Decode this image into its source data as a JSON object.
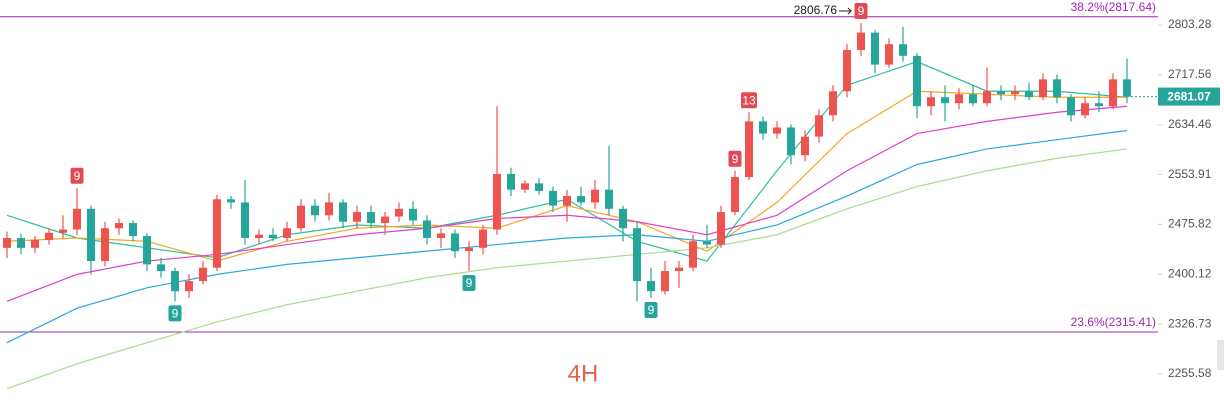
{
  "chart_data": {
    "type": "candlestick",
    "watermark": "4H",
    "log_scale": true,
    "ylim": [
      2216.6,
      2847.3
    ],
    "yticks": [
      2803.28,
      2717.56,
      2634.46,
      2553.91,
      2475.82,
      2400.12,
      2326.73,
      2255.58
    ],
    "up_color": "#ef5350",
    "down_color": "#26a69a",
    "open": [
      2440,
      2455,
      2440,
      2452,
      2463,
      2468,
      2500,
      2420,
      2470,
      2478,
      2458,
      2415,
      2405,
      2375,
      2390,
      2410,
      2515,
      2510,
      2455,
      2460,
      2455,
      2470,
      2505,
      2490,
      2510,
      2480,
      2495,
      2478,
      2488,
      2500,
      2482,
      2455,
      2462,
      2435,
      2440,
      2468,
      2555,
      2530,
      2540,
      2528,
      2505,
      2520,
      2510,
      2530,
      2500,
      2470,
      2390,
      2375,
      2405,
      2410,
      2450,
      2445,
      2495,
      2550,
      2640,
      2620,
      2630,
      2585,
      2615,
      2650,
      2690,
      2760,
      2790,
      2735,
      2770,
      2750,
      2665,
      2680,
      2670,
      2685,
      2670,
      2690,
      2685,
      2690,
      2680,
      2710,
      2680,
      2650,
      2670,
      2665,
      2710
    ],
    "high": [
      2465,
      2462,
      2458,
      2470,
      2490,
      2533,
      2505,
      2480,
      2485,
      2482,
      2462,
      2425,
      2410,
      2400,
      2420,
      2522,
      2520,
      2545,
      2468,
      2470,
      2480,
      2515,
      2515,
      2525,
      2515,
      2505,
      2505,
      2495,
      2510,
      2512,
      2490,
      2470,
      2468,
      2450,
      2475,
      2665,
      2565,
      2545,
      2548,
      2535,
      2530,
      2535,
      2545,
      2600,
      2505,
      2480,
      2410,
      2420,
      2420,
      2460,
      2475,
      2505,
      2560,
      2655,
      2648,
      2640,
      2635,
      2625,
      2660,
      2700,
      2770,
      2806.76,
      2795,
      2780,
      2800,
      2755,
      2690,
      2700,
      2695,
      2700,
      2730,
      2700,
      2700,
      2705,
      2720,
      2718,
      2685,
      2680,
      2690,
      2720,
      2745
    ],
    "low": [
      2425,
      2430,
      2432,
      2445,
      2455,
      2460,
      2400,
      2412,
      2460,
      2450,
      2405,
      2395,
      2360,
      2365,
      2385,
      2405,
      2500,
      2445,
      2445,
      2450,
      2450,
      2465,
      2480,
      2482,
      2470,
      2470,
      2470,
      2460,
      2480,
      2475,
      2445,
      2440,
      2425,
      2405,
      2430,
      2460,
      2520,
      2525,
      2522,
      2495,
      2480,
      2505,
      2500,
      2490,
      2450,
      2360,
      2365,
      2370,
      2380,
      2405,
      2440,
      2440,
      2490,
      2545,
      2610,
      2612,
      2570,
      2575,
      2605,
      2640,
      2680,
      2750,
      2720,
      2730,
      2740,
      2645,
      2650,
      2640,
      2660,
      2665,
      2665,
      2675,
      2675,
      2675,
      2675,
      2670,
      2640,
      2645,
      2655,
      2660,
      2670
    ],
    "close": [
      2455,
      2440,
      2452,
      2463,
      2468,
      2500,
      2420,
      2470,
      2478,
      2458,
      2415,
      2405,
      2375,
      2390,
      2410,
      2515,
      2510,
      2455,
      2460,
      2455,
      2470,
      2505,
      2490,
      2510,
      2480,
      2495,
      2478,
      2488,
      2500,
      2482,
      2455,
      2462,
      2435,
      2440,
      2468,
      2555,
      2530,
      2540,
      2528,
      2505,
      2520,
      2510,
      2530,
      2500,
      2470,
      2390,
      2375,
      2405,
      2410,
      2450,
      2445,
      2495,
      2550,
      2640,
      2620,
      2630,
      2585,
      2615,
      2650,
      2690,
      2760,
      2790,
      2735,
      2770,
      2750,
      2665,
      2680,
      2670,
      2685,
      2670,
      2690,
      2685,
      2690,
      2680,
      2710,
      2680,
      2650,
      2670,
      2665,
      2710,
      2681.07
    ],
    "ma_x": [
      0,
      5,
      10,
      15,
      20,
      25,
      30,
      35,
      40,
      45,
      50,
      55,
      60,
      65,
      70,
      75,
      80
    ],
    "series": [
      {
        "color": "#2bbf9e",
        "values": [
          2490,
          2455,
          2440,
          2425,
          2460,
          2475,
          2470,
          2490,
          2515,
          2450,
          2420,
          2560,
          2700,
          2740,
          2690,
          2690,
          2680
        ]
      },
      {
        "color": "#f5a623",
        "values": [
          2450,
          2455,
          2450,
          2420,
          2450,
          2470,
          2475,
          2470,
          2505,
          2480,
          2435,
          2510,
          2620,
          2690,
          2685,
          2680,
          2680
        ]
      },
      {
        "color": "#e040c8",
        "values": [
          2360,
          2400,
          2420,
          2430,
          2445,
          2460,
          2470,
          2485,
          2490,
          2480,
          2460,
          2490,
          2560,
          2620,
          2640,
          2655,
          2665
        ]
      },
      {
        "color": "#29a8e0",
        "values": [
          2300,
          2350,
          2380,
          2400,
          2415,
          2425,
          2435,
          2445,
          2455,
          2460,
          2450,
          2475,
          2520,
          2570,
          2595,
          2610,
          2625
        ]
      },
      {
        "color": "#a8dc8c",
        "values": [
          2235,
          2270,
          2300,
          2330,
          2355,
          2375,
          2395,
          2410,
          2420,
          2430,
          2440,
          2460,
          2500,
          2535,
          2560,
          2580,
          2595
        ]
      }
    ],
    "fib_lines": [
      {
        "label": "38.2%(2817.64)",
        "value": 2817.64
      },
      {
        "label": "23.6%(2315.41)",
        "value": 2315.41
      }
    ],
    "fib_color": "#9c27b0",
    "signals": [
      {
        "index": 5,
        "text": "9",
        "kind": "sell"
      },
      {
        "index": 52,
        "text": "9",
        "kind": "sell"
      },
      {
        "index": 53,
        "text": "13",
        "kind": "sell"
      },
      {
        "index": 61,
        "text": "9",
        "kind": "sell"
      },
      {
        "index": 12,
        "text": "9",
        "kind": "buy"
      },
      {
        "index": 33,
        "text": "9",
        "kind": "buy"
      },
      {
        "index": 46,
        "text": "9",
        "kind": "buy"
      }
    ],
    "high_marker_index": 61
  }
}
